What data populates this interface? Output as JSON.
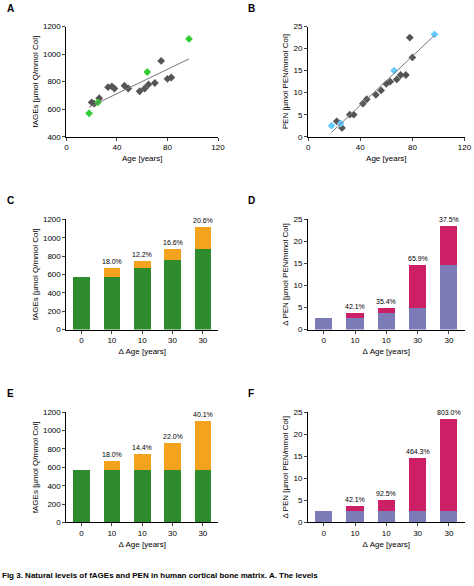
{
  "caption": "Fig 3. Natural levels of fAGEs and PEN in human cortical bone matrix. A. The levels",
  "chart_data": [
    {
      "type": "scatter",
      "title": "A",
      "x_label": "Age [years]",
      "y_label": "fAGEs [µmol Q/mmol Col]",
      "xlim": [
        0,
        120
      ],
      "xticks": [
        0,
        40,
        80,
        120
      ],
      "ylim": [
        400,
        1200
      ],
      "yticks": [
        400,
        600,
        800,
        1000,
        1200
      ],
      "grid": false,
      "series": [
        {
          "type": "scatter",
          "color": "#555555",
          "marker": "diamond",
          "x": [
            20,
            22,
            26,
            33,
            36,
            38,
            46,
            49,
            58,
            62,
            65,
            70,
            75,
            80,
            83
          ],
          "values": [
            650,
            640,
            680,
            760,
            765,
            750,
            770,
            750,
            730,
            750,
            780,
            790,
            950,
            820,
            830
          ]
        },
        {
          "type": "scatter",
          "color": "#33cc33",
          "marker": "diamond",
          "x": [
            18,
            25,
            64,
            97
          ],
          "values": [
            570,
            650,
            870,
            1110
          ]
        },
        {
          "type": "line",
          "color": "#777777",
          "line_style": "solid",
          "x": [
            18,
            97
          ],
          "values": [
            615,
            965
          ]
        }
      ]
    },
    {
      "type": "scatter",
      "title": "B",
      "x_label": "Age [years]",
      "y_label": "PEN [µmol PEN/mmol Col]",
      "xlim": [
        0,
        120
      ],
      "xticks": [
        0,
        40,
        80,
        120
      ],
      "ylim": [
        0,
        25
      ],
      "yticks": [
        0,
        5,
        10,
        15,
        20,
        25
      ],
      "grid": false,
      "series": [
        {
          "type": "scatter",
          "color": "#555555",
          "marker": "diamond",
          "x": [
            22,
            26,
            32,
            35,
            42,
            45,
            52,
            56,
            60,
            63,
            68,
            71,
            75,
            78,
            80
          ],
          "values": [
            3.5,
            2,
            5,
            5,
            7.5,
            8.5,
            9.5,
            10.5,
            12,
            12.5,
            13,
            14,
            14,
            22.5,
            18
          ]
        },
        {
          "type": "scatter",
          "color": "#66ccff",
          "marker": "diamond",
          "x": [
            18,
            25,
            66,
            97
          ],
          "values": [
            2.5,
            3,
            15,
            23.2
          ]
        },
        {
          "type": "line",
          "color": "#777777",
          "line_style": "solid",
          "x": [
            18,
            97
          ],
          "values": [
            1,
            23
          ]
        }
      ]
    },
    {
      "type": "bar",
      "title": "C",
      "x_label": "Δ Age [years]",
      "y_label": "fAGEs [µmol Q/mmol Col]",
      "categories": [
        "0",
        "10",
        "10",
        "30",
        "30"
      ],
      "stacked": true,
      "ylim": [
        0,
        1200
      ],
      "yticks": [
        0,
        200,
        400,
        600,
        800,
        1000,
        1200
      ],
      "grid": false,
      "series": [
        {
          "color": "#2e8b2e",
          "values": [
            570,
            570,
            670,
            755,
            880
          ]
        },
        {
          "color": "#f5a31f",
          "values": [
            0,
            105,
            82,
            125,
            232
          ]
        }
      ],
      "annotations": [
        null,
        "18.0%",
        "12.2%",
        "16.6%",
        "20.6%"
      ]
    },
    {
      "type": "bar",
      "title": "D",
      "x_label": "Δ Age [years]",
      "y_label": "Δ PEN [µmol PEN/mmol Col]",
      "categories": [
        "0",
        "10",
        "10",
        "30",
        "30"
      ],
      "stacked": true,
      "ylim": [
        0,
        25
      ],
      "yticks": [
        0,
        5,
        10,
        15,
        20,
        25
      ],
      "grid": false,
      "series": [
        {
          "color": "#7b7bb8",
          "values": [
            2.6,
            2.6,
            3.7,
            5.0,
            14.6
          ]
        },
        {
          "color": "#cc1f66",
          "values": [
            0,
            1.1,
            1.3,
            9.7,
            8.8
          ]
        }
      ],
      "annotations": [
        null,
        "42.1%",
        "35.4%",
        "65.9%",
        "37.5%"
      ]
    },
    {
      "type": "bar",
      "title": "E",
      "x_label": "Δ Age [years]",
      "y_label": "fAGEs [µmol Q/mmol Col]",
      "categories": [
        "0",
        "10",
        "10",
        "30",
        "30"
      ],
      "stacked": true,
      "ylim": [
        0,
        1200
      ],
      "yticks": [
        0,
        200,
        400,
        600,
        800,
        1000,
        1200
      ],
      "grid": false,
      "series": [
        {
          "color": "#2e8b2e",
          "values": [
            570,
            570,
            570,
            570,
            570
          ]
        },
        {
          "color": "#f5a31f",
          "values": [
            0,
            103,
            180,
            300,
            540
          ]
        }
      ],
      "annotations": [
        null,
        "18.0%",
        "14.4%",
        "22.0%",
        "40.1%"
      ]
    },
    {
      "type": "bar",
      "title": "F",
      "x_label": "Δ Age [years]",
      "y_label": "Δ PEN [µmol PEN/mmol Col]",
      "categories": [
        "0",
        "10",
        "10",
        "30",
        "30"
      ],
      "stacked": true,
      "ylim": [
        0,
        25
      ],
      "yticks": [
        0,
        5,
        10,
        15,
        20,
        25
      ],
      "grid": false,
      "series": [
        {
          "color": "#7b7bb8",
          "values": [
            2.6,
            2.6,
            2.6,
            2.6,
            2.6
          ]
        },
        {
          "color": "#cc1f66",
          "values": [
            0,
            1.1,
            2.4,
            12.1,
            20.8
          ]
        }
      ],
      "annotations": [
        null,
        "42.1%",
        "92.5%",
        "464.3%",
        "803.0%"
      ]
    }
  ]
}
